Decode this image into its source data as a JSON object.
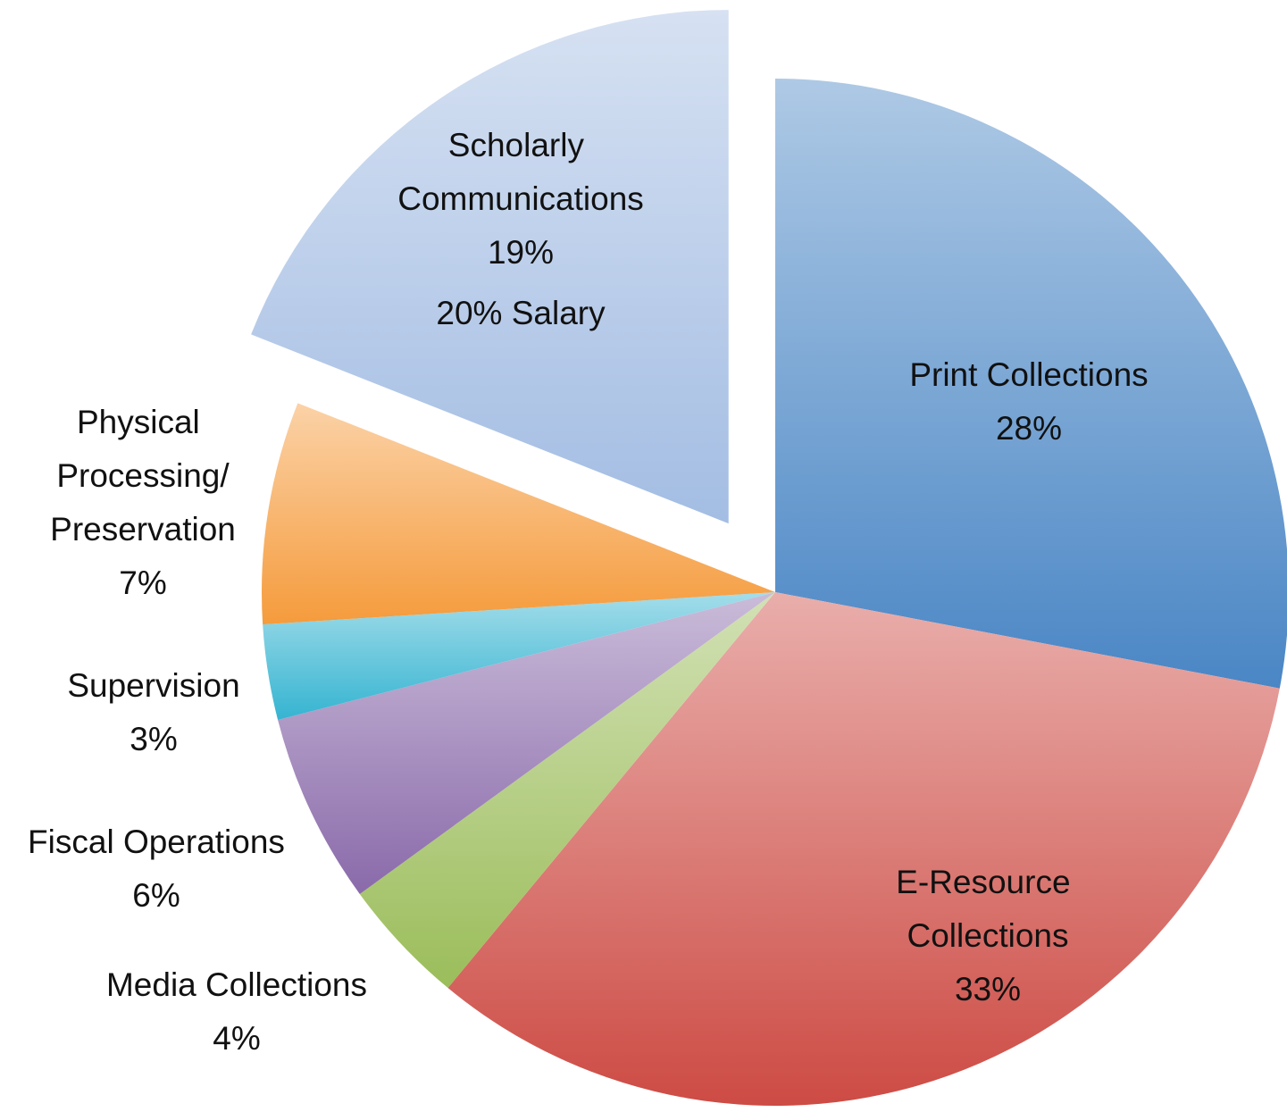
{
  "chart_data": {
    "type": "pie",
    "categories": [
      "Print Collections",
      "E-Resource Collections",
      "Media Collections",
      "Fiscal Operations",
      "Supervision",
      "Physical Processing/Preservation",
      "Scholarly Communications"
    ],
    "values": [
      28,
      33,
      4,
      6,
      3,
      7,
      19
    ],
    "value_labels": [
      "28%",
      "33%",
      "4%",
      "6%",
      "3%",
      "7%",
      "19%"
    ],
    "colors": [
      "#4a86c5",
      "#cd4b44",
      "#9bbd5a",
      "#8a6aaa",
      "#35b4d1",
      "#f59b3c",
      "#a3bde3"
    ],
    "annotations": [
      "20% Salary"
    ]
  }
}
